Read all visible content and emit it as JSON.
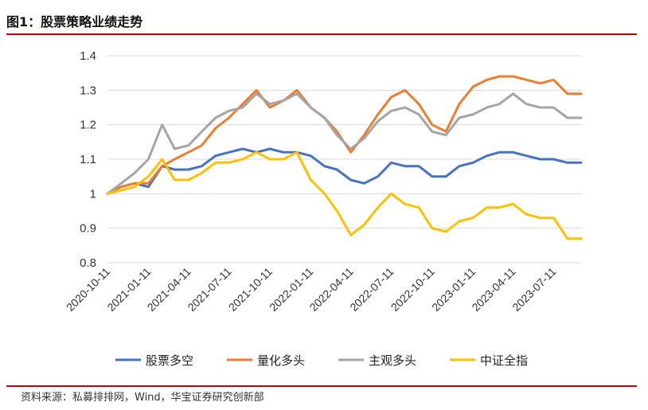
{
  "header": {
    "title": "图1：股票策略业绩走势"
  },
  "footer": {
    "source": "资料来源：私募排排网，Wind，华宝证券研究创新部"
  },
  "chart_data": {
    "type": "line",
    "title": "",
    "xlabel": "",
    "ylabel": "",
    "ylim": [
      0.8,
      1.4
    ],
    "yticks": [
      "0.8",
      "0.9",
      "1",
      "1.1",
      "1.2",
      "1.3",
      "1.4"
    ],
    "xticks": [
      "2020-10-11",
      "2021-01-11",
      "2021-04-11",
      "2021-07-11",
      "2021-10-11",
      "2022-01-11",
      "2022-04-11",
      "2022-07-11",
      "2022-10-11",
      "2023-01-11",
      "2023-04-11",
      "2023-07-11"
    ],
    "grid": "horizontal",
    "legend_position": "bottom",
    "x": [
      "2020-10-11",
      "2020-11-11",
      "2020-12-11",
      "2021-01-11",
      "2021-02-11",
      "2021-03-11",
      "2021-04-11",
      "2021-05-11",
      "2021-06-11",
      "2021-07-11",
      "2021-08-11",
      "2021-09-11",
      "2021-10-11",
      "2021-11-11",
      "2021-12-11",
      "2022-01-11",
      "2022-02-11",
      "2022-03-11",
      "2022-04-11",
      "2022-05-11",
      "2022-06-11",
      "2022-07-11",
      "2022-08-11",
      "2022-09-11",
      "2022-10-11",
      "2022-11-11",
      "2022-12-11",
      "2023-01-11",
      "2023-02-11",
      "2023-03-11",
      "2023-04-11",
      "2023-05-11",
      "2023-06-11",
      "2023-07-11",
      "2023-08-11",
      "2023-09-11"
    ],
    "series": [
      {
        "name": "股票多空",
        "color": "#4472C4",
        "values": [
          1.0,
          1.02,
          1.03,
          1.02,
          1.08,
          1.07,
          1.07,
          1.08,
          1.11,
          1.12,
          1.13,
          1.12,
          1.13,
          1.12,
          1.12,
          1.11,
          1.08,
          1.07,
          1.04,
          1.03,
          1.05,
          1.09,
          1.08,
          1.08,
          1.05,
          1.05,
          1.08,
          1.09,
          1.11,
          1.12,
          1.12,
          1.11,
          1.1,
          1.1,
          1.09,
          1.09
        ]
      },
      {
        "name": "量化多头",
        "color": "#ED7D31",
        "values": [
          1.0,
          1.02,
          1.03,
          1.03,
          1.08,
          1.1,
          1.12,
          1.14,
          1.19,
          1.22,
          1.26,
          1.3,
          1.25,
          1.27,
          1.3,
          1.25,
          1.22,
          1.18,
          1.12,
          1.17,
          1.23,
          1.28,
          1.3,
          1.26,
          1.2,
          1.18,
          1.26,
          1.31,
          1.33,
          1.34,
          1.34,
          1.33,
          1.32,
          1.33,
          1.29,
          1.29
        ]
      },
      {
        "name": "主观多头",
        "color": "#A5A5A5",
        "values": [
          1.0,
          1.03,
          1.06,
          1.1,
          1.2,
          1.13,
          1.14,
          1.18,
          1.22,
          1.24,
          1.25,
          1.29,
          1.26,
          1.27,
          1.29,
          1.25,
          1.22,
          1.17,
          1.13,
          1.16,
          1.21,
          1.24,
          1.25,
          1.23,
          1.18,
          1.17,
          1.22,
          1.23,
          1.25,
          1.26,
          1.29,
          1.26,
          1.25,
          1.25,
          1.22,
          1.22
        ]
      },
      {
        "name": "中证全指",
        "color": "#FFC000",
        "values": [
          1.0,
          1.01,
          1.02,
          1.05,
          1.1,
          1.04,
          1.04,
          1.06,
          1.09,
          1.09,
          1.1,
          1.12,
          1.1,
          1.1,
          1.12,
          1.04,
          1.0,
          0.95,
          0.88,
          0.91,
          0.96,
          1.0,
          0.97,
          0.96,
          0.9,
          0.89,
          0.92,
          0.93,
          0.96,
          0.96,
          0.97,
          0.94,
          0.93,
          0.93,
          0.87,
          0.87
        ]
      }
    ]
  }
}
